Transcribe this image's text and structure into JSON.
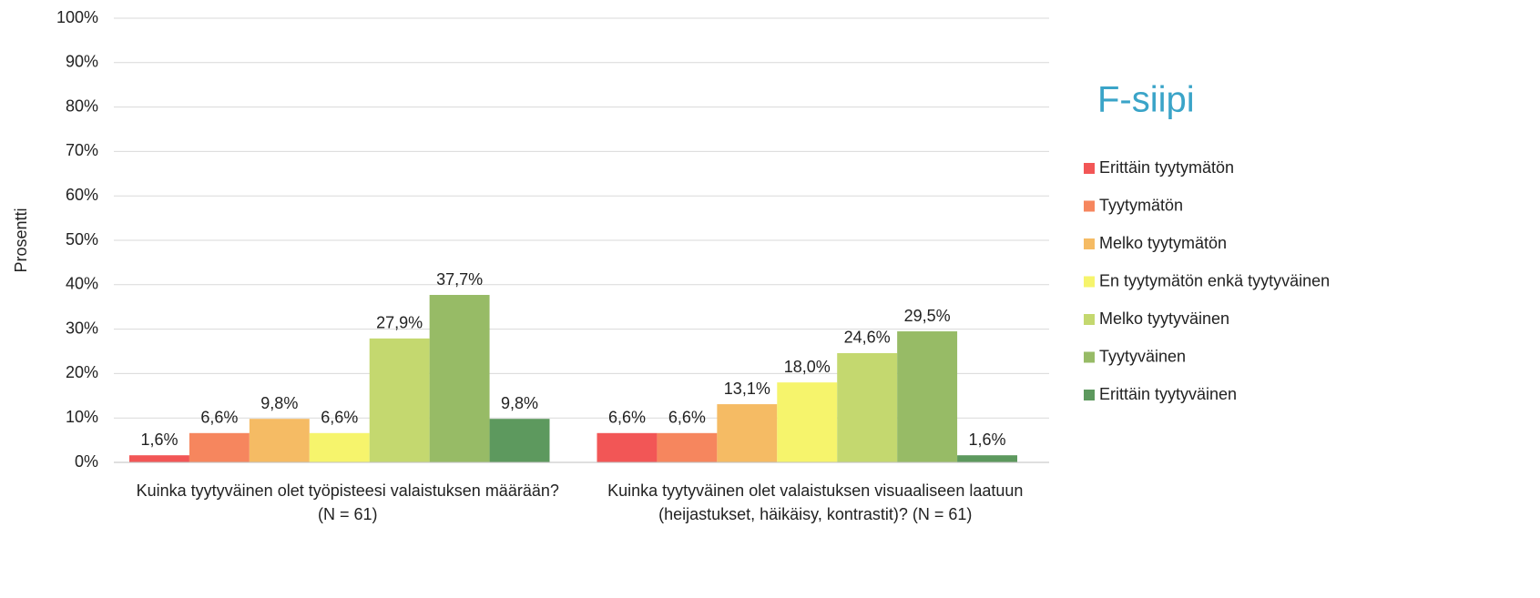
{
  "chart_data": {
    "type": "bar",
    "legend_title": "F-siipi",
    "ylabel": "Prosentti",
    "categories": [
      "Kuinka tyytyväinen olet työpisteesi valaistuksen määrään? (N = 61)",
      "Kuinka tyytyväinen olet valaistuksen visuaaliseen laatuun (heijastukset, häikäisy, kontrastit)? (N = 61)"
    ],
    "series": [
      {
        "name": "Erittäin tyytymätön",
        "color": "#f25656",
        "values": [
          1.6,
          6.6
        ],
        "value_labels": [
          "1,6%",
          "6,6%"
        ]
      },
      {
        "name": "Tyytymätön",
        "color": "#f6865e",
        "values": [
          6.6,
          6.6
        ],
        "value_labels": [
          "6,6%",
          "6,6%"
        ]
      },
      {
        "name": "Melko tyytymätön",
        "color": "#f5bb64",
        "values": [
          9.8,
          13.1
        ],
        "value_labels": [
          "9,8%",
          "13,1%"
        ]
      },
      {
        "name": "En tyytymätön enkä tyytyväinen",
        "color": "#f6f46c",
        "values": [
          6.6,
          18.0
        ],
        "value_labels": [
          "6,6%",
          "18,0%"
        ]
      },
      {
        "name": "Melko tyytyväinen",
        "color": "#c4d86f",
        "values": [
          27.9,
          24.6
        ],
        "value_labels": [
          "27,9%",
          "24,6%"
        ]
      },
      {
        "name": "Tyytyväinen",
        "color": "#97bb66",
        "values": [
          37.7,
          29.5
        ],
        "value_labels": [
          "37,7%",
          "29,5%"
        ]
      },
      {
        "name": "Erittäin tyytyväinen",
        "color": "#5d995e",
        "values": [
          9.8,
          1.6
        ],
        "value_labels": [
          "9,8%",
          "1,6%"
        ]
      }
    ],
    "ylim": [
      0,
      100
    ],
    "yticks": [
      {
        "value": 0,
        "label": "0%"
      },
      {
        "value": 10,
        "label": "10%"
      },
      {
        "value": 20,
        "label": "20%"
      },
      {
        "value": 30,
        "label": "30%"
      },
      {
        "value": 40,
        "label": "40%"
      },
      {
        "value": 50,
        "label": "50%"
      },
      {
        "value": 60,
        "label": "60%"
      },
      {
        "value": 70,
        "label": "70%"
      },
      {
        "value": 80,
        "label": "80%"
      },
      {
        "value": 90,
        "label": "90%"
      },
      {
        "value": 100,
        "label": "100%"
      }
    ],
    "grid": true,
    "legend": "right"
  }
}
